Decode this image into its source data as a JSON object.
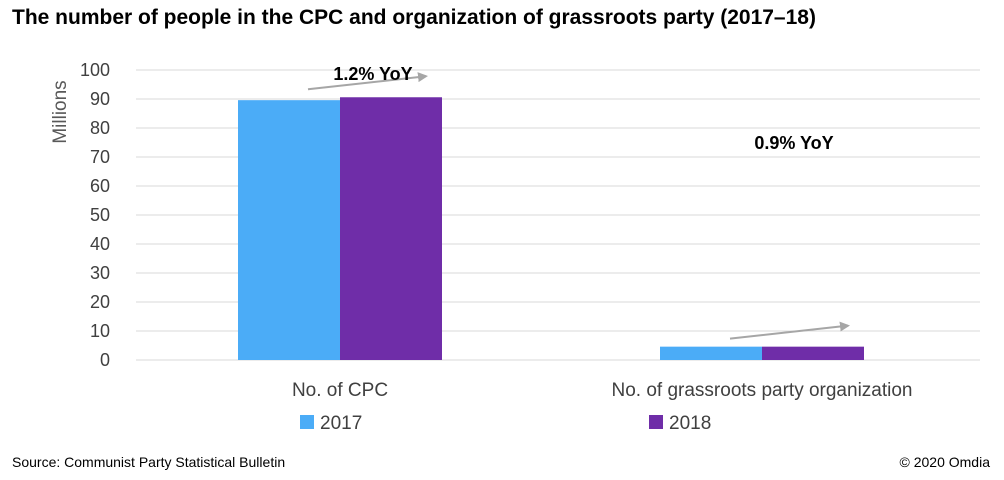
{
  "title": "The number of people in the CPC and organization of grassroots party (2017–18)",
  "source": "Source: Communist Party Statistical Bulletin",
  "copyright": "© 2020 Omdia",
  "chart_data": {
    "type": "bar",
    "ylabel": "Millions",
    "ylim": [
      0,
      100
    ],
    "yticks": [
      0,
      10,
      20,
      30,
      40,
      50,
      60,
      70,
      80,
      90,
      100
    ],
    "grid": true,
    "legend_position": "bottom",
    "categories": [
      "No. of CPC",
      "No. of grassroots party organization"
    ],
    "series": [
      {
        "name": "2017",
        "values": [
          89.6,
          4.6
        ],
        "color": "#4BACF7"
      },
      {
        "name": "2018",
        "values": [
          90.6,
          4.6
        ],
        "color": "#6F2DA8"
      }
    ],
    "annotations": [
      {
        "text": "1.2% YoY",
        "category": 0
      },
      {
        "text": "0.9% YoY",
        "category": 1
      }
    ],
    "gridline_color": "#d9d9d9",
    "arrow_color": "#a6a6a6"
  }
}
